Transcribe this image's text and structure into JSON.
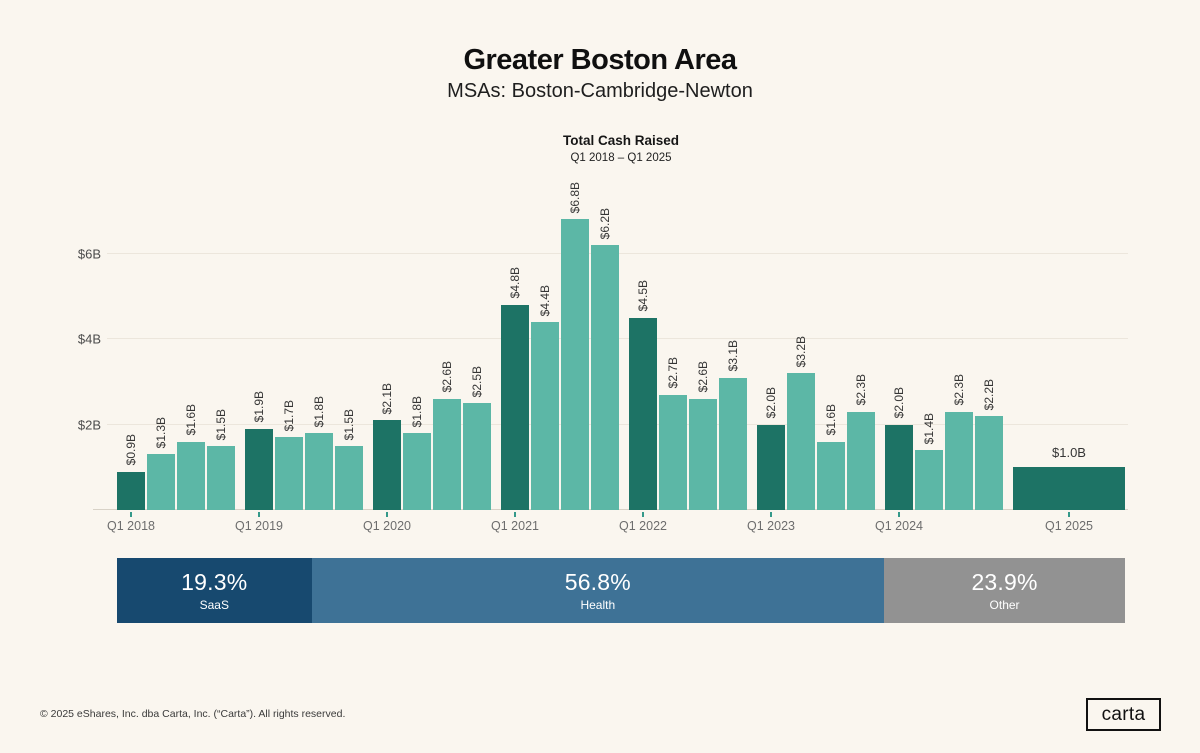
{
  "header": {
    "title": "Greater Boston Area",
    "subtitle": "MSAs: Boston-Cambridge-Newton"
  },
  "chart_data": {
    "type": "bar",
    "title": "Total Cash Raised",
    "subtitle": "Q1 2018 – Q1 2025",
    "unit": "USD billions",
    "ylim": [
      0,
      7.5
    ],
    "grid": true,
    "y_gridlines": [
      {
        "label": "$2B",
        "value": 2
      },
      {
        "label": "$4B",
        "value": 4
      },
      {
        "label": "$6B",
        "value": 6
      }
    ],
    "colors": {
      "q1_bar": "#1d7365",
      "other_bar": "#5cb7a6",
      "tick": "#35998a",
      "background": "#faf6ef"
    },
    "groups": [
      {
        "year_label": "Q1 2018",
        "values": [
          0.9,
          1.3,
          1.6,
          1.5
        ],
        "labels": [
          "$0.9B",
          "$1.3B",
          "$1.6B",
          "$1.5B"
        ],
        "wide": false
      },
      {
        "year_label": "Q1 2019",
        "values": [
          1.9,
          1.7,
          1.8,
          1.5
        ],
        "labels": [
          "$1.9B",
          "$1.7B",
          "$1.8B",
          "$1.5B"
        ],
        "wide": false
      },
      {
        "year_label": "Q1 2020",
        "values": [
          2.1,
          1.8,
          2.6,
          2.5
        ],
        "labels": [
          "$2.1B",
          "$1.8B",
          "$2.6B",
          "$2.5B"
        ],
        "wide": false
      },
      {
        "year_label": "Q1 2021",
        "values": [
          4.8,
          4.4,
          6.8,
          6.2
        ],
        "labels": [
          "$4.8B",
          "$4.4B",
          "$6.8B",
          "$6.2B"
        ],
        "wide": false
      },
      {
        "year_label": "Q1 2022",
        "values": [
          4.5,
          2.7,
          2.6,
          3.1
        ],
        "labels": [
          "$4.5B",
          "$2.7B",
          "$2.6B",
          "$3.1B"
        ],
        "wide": false
      },
      {
        "year_label": "Q1 2023",
        "values": [
          2.0,
          3.2,
          1.6,
          2.3
        ],
        "labels": [
          "$2.0B",
          "$3.2B",
          "$1.6B",
          "$2.3B"
        ],
        "wide": false
      },
      {
        "year_label": "Q1 2024",
        "values": [
          2.0,
          1.4,
          2.3,
          2.2
        ],
        "labels": [
          "$2.0B",
          "$1.4B",
          "$2.3B",
          "$2.2B"
        ],
        "wide": false
      },
      {
        "year_label": "Q1 2025",
        "values": [
          1.0
        ],
        "labels": [
          "$1.0B"
        ],
        "wide": true
      }
    ],
    "breakdown": [
      {
        "pct": "19.3%",
        "label": "SaaS",
        "value": 19.3,
        "color": "#17496f"
      },
      {
        "pct": "56.8%",
        "label": "Health",
        "value": 56.8,
        "color": "#3e7296"
      },
      {
        "pct": "23.9%",
        "label": "Other",
        "value": 23.9,
        "color": "#929292"
      }
    ]
  },
  "footer": {
    "copyright": "© 2025 eShares, Inc. dba Carta, Inc. (“Carta”). All rights reserved.",
    "logo_text": "carta"
  }
}
